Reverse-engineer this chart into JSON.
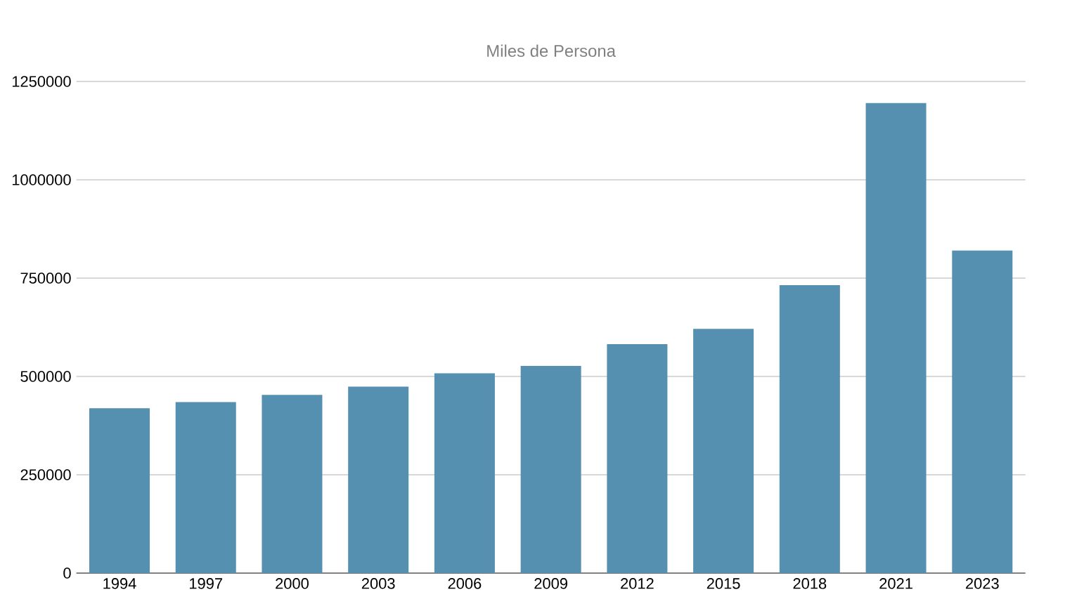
{
  "chart_data": {
    "type": "bar",
    "title": "Miles de Persona",
    "categories": [
      "1994",
      "1997",
      "2000",
      "2003",
      "2006",
      "2009",
      "2012",
      "2015",
      "2018",
      "2021",
      "2023"
    ],
    "values": [
      419000,
      435000,
      453000,
      474000,
      508000,
      527000,
      582000,
      621000,
      732000,
      1195000,
      820000
    ],
    "color": "#5590b0",
    "ylim": [
      0,
      1250000
    ],
    "yticks": [
      0,
      250000,
      500000,
      750000,
      1000000,
      1250000
    ],
    "grid": "y"
  }
}
